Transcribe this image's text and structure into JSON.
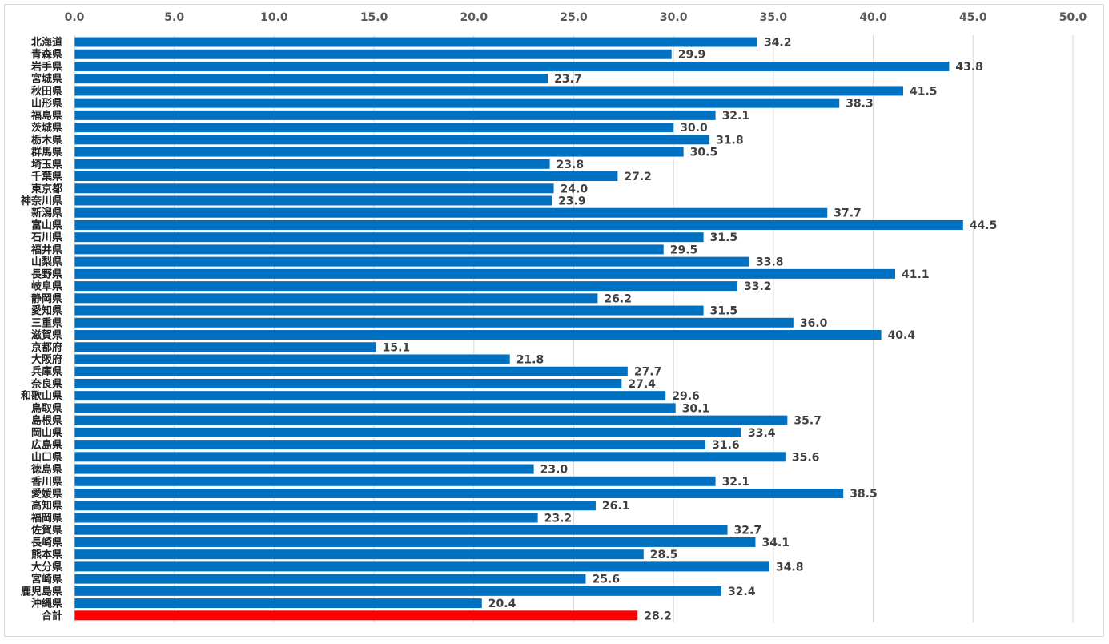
{
  "chart_data": {
    "type": "bar",
    "orientation": "horizontal",
    "title": "",
    "xlabel": "",
    "ylabel": "",
    "xlim": [
      0,
      50
    ],
    "ticks": [
      "0.0",
      "5.0",
      "10.0",
      "15.0",
      "20.0",
      "25.0",
      "30.0",
      "35.0",
      "40.0",
      "45.0",
      "50.0"
    ],
    "tick_values": [
      0,
      5,
      10,
      15,
      20,
      25,
      30,
      35,
      40,
      45,
      50
    ],
    "axis_position": "top",
    "grid": true,
    "legend": "none",
    "categories": [
      "北海道",
      "青森県",
      "岩手県",
      "宮城県",
      "秋田県",
      "山形県",
      "福島県",
      "茨城県",
      "栃木県",
      "群馬県",
      "埼玉県",
      "千葉県",
      "東京都",
      "神奈川県",
      "新潟県",
      "富山県",
      "石川県",
      "福井県",
      "山梨県",
      "長野県",
      "岐阜県",
      "静岡県",
      "愛知県",
      "三重県",
      "滋賀県",
      "京都府",
      "大阪府",
      "兵庫県",
      "奈良県",
      "和歌山県",
      "鳥取県",
      "島根県",
      "岡山県",
      "広島県",
      "山口県",
      "徳島県",
      "香川県",
      "愛媛県",
      "高知県",
      "福岡県",
      "佐賀県",
      "長崎県",
      "熊本県",
      "大分県",
      "宮崎県",
      "鹿児島県",
      "沖縄県",
      "合計"
    ],
    "values": [
      34.2,
      29.9,
      43.8,
      23.7,
      41.5,
      38.3,
      32.1,
      30.0,
      31.8,
      30.5,
      23.8,
      27.2,
      24.0,
      23.9,
      37.7,
      44.5,
      31.5,
      29.5,
      33.8,
      41.1,
      33.2,
      26.2,
      31.5,
      36.0,
      40.4,
      15.1,
      21.8,
      27.7,
      27.4,
      29.6,
      30.1,
      35.7,
      33.4,
      31.6,
      35.6,
      23.0,
      32.1,
      38.5,
      26.1,
      23.2,
      32.7,
      34.1,
      28.5,
      34.8,
      25.6,
      32.4,
      20.4,
      28.2
    ],
    "value_labels": [
      "34.2",
      "29.9",
      "43.8",
      "23.7",
      "41.5",
      "38.3",
      "32.1",
      "30.0",
      "31.8",
      "30.5",
      "23.8",
      "27.2",
      "24.0",
      "23.9",
      "37.7",
      "44.5",
      "31.5",
      "29.5",
      "33.8",
      "41.1",
      "33.2",
      "26.2",
      "31.5",
      "36.0",
      "40.4",
      "15.1",
      "21.8",
      "27.7",
      "27.4",
      "29.6",
      "30.1",
      "35.7",
      "33.4",
      "31.6",
      "35.6",
      "23.0",
      "32.1",
      "38.5",
      "26.1",
      "23.2",
      "32.7",
      "34.1",
      "28.5",
      "34.8",
      "25.6",
      "32.4",
      "20.4",
      "28.2"
    ],
    "colors": {
      "bar": "#0070C0",
      "highlight": "#FF0000",
      "highlight_category": "合計"
    }
  }
}
